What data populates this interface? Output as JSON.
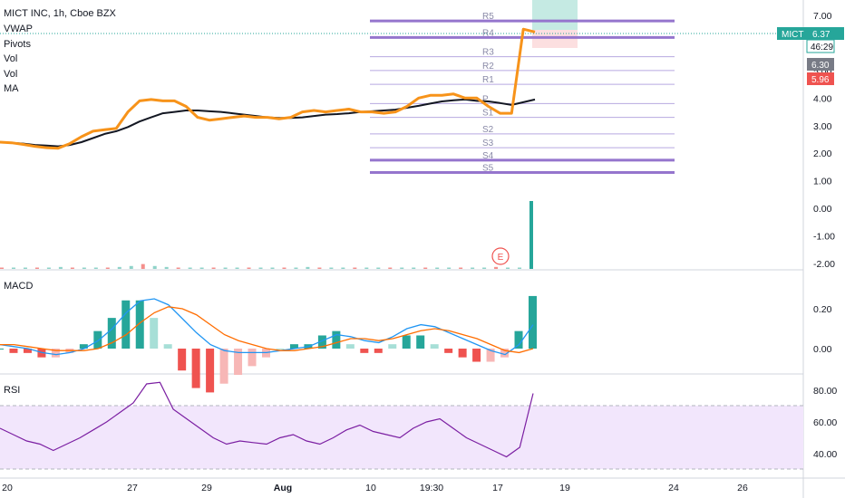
{
  "header": {
    "title": "MICT INC, 1h, Cboe BZX",
    "indicators": [
      "VWAP",
      "Pivots",
      "Vol",
      "Vol",
      "MA"
    ]
  },
  "price_tags": [
    {
      "text": "MICT",
      "value": "6.37",
      "color": "#26a69a"
    },
    {
      "text": "",
      "value": "46:29",
      "color": "#ffffff"
    },
    {
      "text": "",
      "value": "6.30",
      "color": "#787b86"
    },
    {
      "text": "",
      "value": "5.96",
      "color": "#ef5350"
    }
  ],
  "panes": {
    "macd_label": "MACD",
    "rsi_label": "RSI"
  },
  "event_badge": "E",
  "pivot_labels": {
    "levels": [
      "R5",
      "R4",
      "R3",
      "R2",
      "R1",
      "P",
      "S1",
      "S2",
      "S3",
      "S4",
      "S5"
    ]
  },
  "colors": {
    "price": "#f7931a",
    "ma": "#131722",
    "pivot_major": "#9575cd",
    "pivot_minor": "#b7a9e0",
    "macd": "#2196f3",
    "signal": "#ff6d00",
    "up": "#26a69a",
    "down": "#ef5350",
    "rsi": "#7b1fa2"
  },
  "chart_data": [
    {
      "type": "line",
      "title": "MICT INC, 1h, Cboe BZX",
      "x_ticks": [
        "20",
        "27",
        "29",
        "Aug",
        "10",
        "19:30",
        "17",
        "19",
        "24",
        "26"
      ],
      "y_ticks": [
        "7.00",
        "6.00",
        "5.00",
        "4.00",
        "3.00",
        "2.00",
        "1.00",
        "0.00",
        "-1.00",
        "-2.00"
      ],
      "ylim": [
        -2.2,
        7.4
      ],
      "series": [
        {
          "name": "VWAP",
          "values": [
            2.4,
            2.38,
            2.32,
            2.25,
            2.2,
            2.18,
            2.35,
            2.6,
            2.8,
            2.85,
            2.9,
            3.5,
            3.9,
            3.95,
            3.9,
            3.9,
            3.7,
            3.3,
            3.2,
            3.25,
            3.3,
            3.35,
            3.3,
            3.3,
            3.25,
            3.3,
            3.5,
            3.55,
            3.5,
            3.55,
            3.6,
            3.5,
            3.5,
            3.45,
            3.5,
            3.7,
            4.0,
            4.1,
            4.1,
            4.15,
            4.0,
            4.0,
            3.7,
            3.45,
            3.45,
            6.5,
            6.4
          ]
        },
        {
          "name": "MA",
          "values": [
            2.4,
            2.38,
            2.35,
            2.3,
            2.28,
            2.25,
            2.3,
            2.4,
            2.55,
            2.7,
            2.8,
            2.95,
            3.15,
            3.3,
            3.45,
            3.5,
            3.55,
            3.55,
            3.52,
            3.5,
            3.45,
            3.4,
            3.35,
            3.3,
            3.28,
            3.28,
            3.3,
            3.35,
            3.4,
            3.42,
            3.45,
            3.5,
            3.52,
            3.55,
            3.58,
            3.65,
            3.72,
            3.8,
            3.88,
            3.92,
            3.95,
            3.9,
            3.88,
            3.82,
            3.75,
            3.85,
            3.95
          ]
        }
      ],
      "pivots_right": {
        "R5": 6.8,
        "R4": 6.2,
        "R3": 5.5,
        "R2": 5.0,
        "R1": 4.5,
        "P": 3.8,
        "S1": 3.3,
        "S2": 2.7,
        "S3": 2.2,
        "S4": 1.75,
        "S5": 1.3
      }
    },
    {
      "type": "bar",
      "title": "Vol",
      "values": [
        1,
        1,
        1,
        1,
        1,
        2,
        1,
        1,
        1,
        1,
        2,
        3,
        5,
        3,
        2,
        1,
        1,
        1,
        1,
        1,
        1,
        1,
        1,
        1,
        1,
        1,
        2,
        1,
        1,
        1,
        1,
        1,
        1,
        1,
        1,
        1,
        1,
        1,
        1,
        1,
        1,
        1,
        2,
        1,
        1,
        70
      ]
    },
    {
      "type": "line",
      "title": "MACD",
      "y_ticks": [
        "0.20",
        "0.00"
      ],
      "ylim": [
        -0.05,
        0.3
      ],
      "series": [
        {
          "name": "MACD",
          "values": [
            0.02,
            0.01,
            0.0,
            -0.02,
            -0.03,
            -0.02,
            0.0,
            0.04,
            0.1,
            0.18,
            0.24,
            0.25,
            0.22,
            0.15,
            0.08,
            0.02,
            -0.01,
            -0.02,
            -0.02,
            -0.02,
            -0.01,
            0.0,
            0.01,
            0.04,
            0.07,
            0.06,
            0.04,
            0.03,
            0.06,
            0.1,
            0.12,
            0.11,
            0.08,
            0.05,
            0.02,
            -0.01,
            -0.03,
            0.02,
            0.12
          ]
        },
        {
          "name": "Signal",
          "values": [
            0.02,
            0.02,
            0.01,
            0.0,
            -0.01,
            -0.01,
            -0.01,
            0.0,
            0.03,
            0.07,
            0.13,
            0.18,
            0.21,
            0.2,
            0.17,
            0.12,
            0.07,
            0.04,
            0.02,
            0.0,
            -0.01,
            -0.01,
            0.0,
            0.01,
            0.03,
            0.05,
            0.05,
            0.04,
            0.05,
            0.07,
            0.09,
            0.1,
            0.09,
            0.07,
            0.05,
            0.02,
            -0.01,
            -0.02,
            0.0
          ]
        }
      ]
    },
    {
      "type": "line",
      "title": "RSI",
      "y_ticks": [
        "80.00",
        "60.00",
        "40.00"
      ],
      "ylim": [
        28,
        88
      ],
      "series": [
        {
          "name": "RSI",
          "values": [
            56,
            52,
            48,
            46,
            42,
            46,
            50,
            55,
            60,
            66,
            72,
            84,
            85,
            68,
            62,
            56,
            50,
            46,
            48,
            47,
            46,
            50,
            52,
            48,
            46,
            50,
            55,
            58,
            54,
            52,
            50,
            56,
            60,
            62,
            56,
            50,
            46,
            42,
            38,
            44,
            78
          ]
        }
      ]
    }
  ]
}
